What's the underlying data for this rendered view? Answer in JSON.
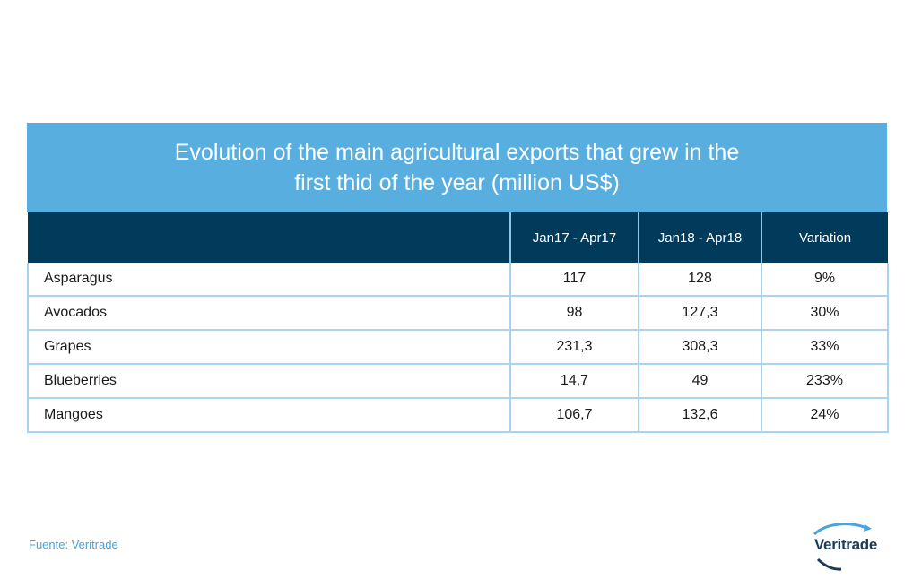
{
  "chart_data": {
    "type": "table",
    "title_line1": "Evolution of the main agricultural exports that grew in the",
    "title_line2": "first thid of the year (million US$)",
    "columns": [
      "",
      "Jan17 - Apr17",
      "Jan18 - Apr18",
      "Variation"
    ],
    "rows": [
      [
        "Asparagus",
        "117",
        "128",
        "9%"
      ],
      [
        "Avocados",
        "98",
        "127,3",
        "30%"
      ],
      [
        "Grapes",
        "231,3",
        "308,3",
        "33%"
      ],
      [
        "Blueberries",
        "14,7",
        "49",
        "233%"
      ],
      [
        "Mangoes",
        "106,7",
        "132,6",
        "24%"
      ]
    ]
  },
  "footer": {
    "source": "Fuente: Veritrade",
    "logo_text": "Veritrade"
  },
  "colors": {
    "title_band": "#58aedf",
    "header": "#003b5c",
    "grid": "#a9d3ee",
    "source_text": "#4aa3dc"
  }
}
